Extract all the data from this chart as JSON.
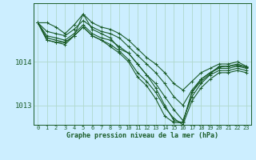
{
  "background_color": "#cceeff",
  "plot_bg_color": "#cceeff",
  "grid_color": "#b0d8cc",
  "line_color": "#1a5c28",
  "title": "Graphe pression niveau de la mer (hPa)",
  "xlim": [
    -0.5,
    23.5
  ],
  "ylim": [
    1012.55,
    1015.35
  ],
  "yticks": [
    1013,
    1014
  ],
  "xticks": [
    0,
    1,
    2,
    3,
    4,
    5,
    6,
    7,
    8,
    9,
    10,
    11,
    12,
    13,
    14,
    15,
    16,
    17,
    18,
    19,
    20,
    21,
    22,
    23
  ],
  "series": [
    {
      "x": [
        0,
        1,
        2,
        3,
        4,
        5,
        6,
        7,
        8,
        9,
        10,
        11,
        12,
        13,
        14,
        15,
        16,
        17,
        18,
        19,
        20,
        21,
        22,
        23
      ],
      "y": [
        1014.9,
        1014.9,
        1014.8,
        1014.65,
        1014.85,
        1015.1,
        1014.9,
        1014.8,
        1014.75,
        1014.65,
        1014.5,
        1014.3,
        1014.1,
        1013.95,
        1013.75,
        1013.5,
        1013.35,
        1013.55,
        1013.75,
        1013.85,
        1013.95,
        1013.95,
        1014.0,
        1013.9
      ]
    },
    {
      "x": [
        0,
        1,
        2,
        3,
        4,
        5,
        6,
        7,
        8,
        9,
        10,
        11,
        12,
        13,
        14,
        15,
        16,
        17,
        18,
        19,
        20,
        21,
        22,
        23
      ],
      "y": [
        1014.9,
        1014.7,
        1014.65,
        1014.6,
        1014.75,
        1014.95,
        1014.8,
        1014.7,
        1014.65,
        1014.55,
        1014.35,
        1014.15,
        1013.95,
        1013.75,
        1013.5,
        1013.2,
        1013.0,
        1013.35,
        1013.6,
        1013.75,
        1013.85,
        1013.85,
        1013.9,
        1013.85
      ]
    },
    {
      "x": [
        0,
        1,
        2,
        3,
        4,
        5,
        6,
        7,
        8,
        9,
        10,
        11,
        12,
        13,
        14,
        15,
        16,
        17,
        18,
        19,
        20,
        21,
        22,
        23
      ],
      "y": [
        1014.9,
        1014.6,
        1014.55,
        1014.5,
        1014.65,
        1014.85,
        1014.65,
        1014.55,
        1014.5,
        1014.35,
        1014.2,
        1013.95,
        1013.7,
        1013.5,
        1013.2,
        1012.9,
        1012.65,
        1013.2,
        1013.5,
        1013.7,
        1013.8,
        1013.8,
        1013.85,
        1013.8
      ]
    },
    {
      "x": [
        0,
        1,
        2,
        3,
        4,
        5,
        6,
        7,
        8,
        9,
        10,
        11,
        12,
        13,
        14,
        15,
        16,
        17,
        18,
        19,
        20,
        21,
        22,
        23
      ],
      "y": [
        1014.9,
        1014.5,
        1014.45,
        1014.45,
        1014.6,
        1014.8,
        1014.6,
        1014.5,
        1014.4,
        1014.25,
        1014.05,
        1013.75,
        1013.55,
        1013.3,
        1012.95,
        1012.7,
        1012.55,
        1013.1,
        1013.4,
        1013.6,
        1013.75,
        1013.75,
        1013.8,
        1013.75
      ]
    },
    {
      "x": [
        0,
        1,
        2,
        3,
        4,
        5,
        6,
        7,
        8,
        9,
        10,
        11,
        12,
        13,
        14,
        15,
        16,
        17,
        18,
        19,
        20,
        21,
        22,
        23
      ],
      "y": [
        1014.9,
        1014.5,
        1014.45,
        1014.4,
        1014.6,
        1014.8,
        1014.6,
        1014.5,
        1014.35,
        1014.2,
        1014.0,
        1013.65,
        1013.45,
        1013.15,
        1012.75,
        1012.6,
        1012.6,
        1013.3,
        1013.6,
        1013.75,
        1013.88,
        1013.9,
        1013.92,
        1013.88
      ]
    }
  ],
  "main_series": {
    "x": [
      0,
      1,
      2,
      3,
      4,
      5,
      6,
      7,
      8,
      9,
      10,
      11,
      12,
      13,
      14,
      15,
      16,
      17,
      18,
      19,
      20,
      21,
      22,
      23
    ],
    "y": [
      1014.9,
      1014.55,
      1014.5,
      1014.45,
      1014.6,
      1015.1,
      1014.75,
      1014.65,
      1014.55,
      1014.3,
      1014.2,
      1013.95,
      1013.7,
      1013.4,
      1013.0,
      1012.65,
      1012.6,
      1013.3,
      1013.55,
      1013.72,
      1013.9,
      1013.9,
      1013.95,
      1013.88
    ]
  }
}
